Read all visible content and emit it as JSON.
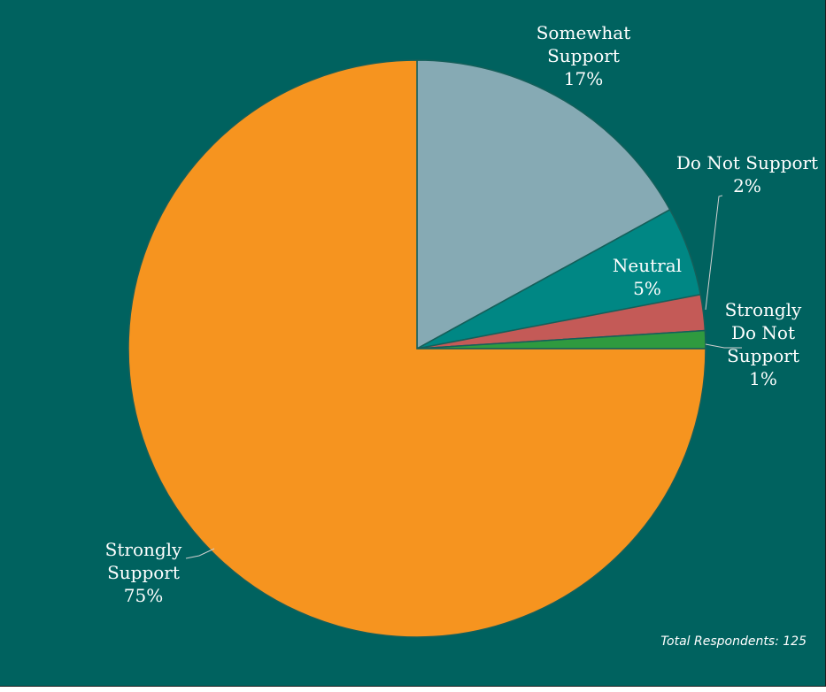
{
  "chart_data": {
    "type": "pie",
    "title": "",
    "start_angle_deg": 90,
    "direction": "clockwise",
    "slices": [
      {
        "name": "Somewhat Support",
        "label_lines": [
          "Somewhat",
          "Support"
        ],
        "value": 17,
        "label": "17%",
        "color": "#86aab4"
      },
      {
        "name": "Neutral",
        "label_lines": [
          "Neutral"
        ],
        "value": 5,
        "label": "5%",
        "color": "#008784"
      },
      {
        "name": "Do Not Support",
        "label_lines": [
          "Do Not Support"
        ],
        "value": 2,
        "label": "2%",
        "color": "#c45a57"
      },
      {
        "name": "Strongly Do Not Support",
        "label_lines": [
          "Strongly",
          "Do Not",
          "Support"
        ],
        "value": 1,
        "label": "1%",
        "color": "#2f9a3f"
      },
      {
        "name": "Strongly Support",
        "label_lines": [
          "Strongly",
          "Support"
        ],
        "value": 75,
        "label": "75%",
        "color": "#f6941f"
      }
    ],
    "note": "Total Respondents: 125",
    "background": "#00625f",
    "slice_border": "#155f5a"
  }
}
